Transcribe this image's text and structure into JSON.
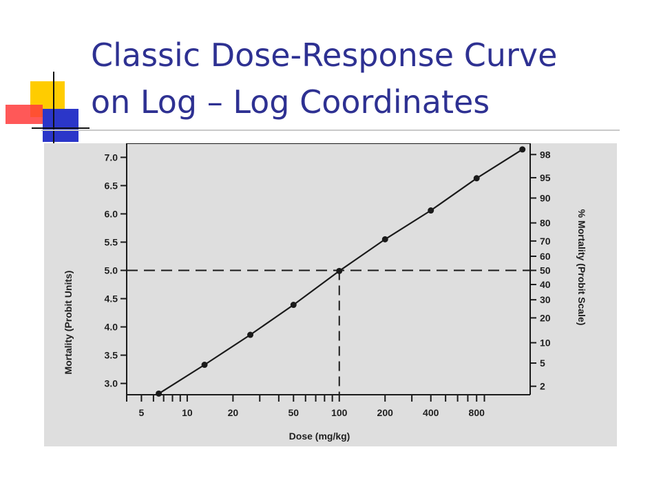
{
  "slide": {
    "title_lines": [
      "Classic Dose-Response Curve",
      "on Log – Log Coordinates"
    ],
    "colors": {
      "title": "#2e3192",
      "accent_yellow": "#ffcc00",
      "accent_blue": "#2b36c9",
      "accent_red": "#ff2a2a"
    }
  },
  "chart_data": {
    "type": "line",
    "xlabel": "Dose (mg/kg)",
    "ylabel": "Mortality (Probit Units)",
    "y2label": "% Mortality (Probit Scale)",
    "xscale": "log",
    "xlim": [
      4,
      1800
    ],
    "ylim": [
      2.8,
      7.2
    ],
    "x_tick_labels": [
      5,
      10,
      20,
      50,
      100,
      200,
      400,
      800
    ],
    "x_minor_ticks": [
      4,
      5,
      6,
      7,
      8,
      9,
      10,
      20,
      30,
      40,
      50,
      60,
      70,
      80,
      90,
      100,
      200,
      300,
      400,
      500,
      600,
      700,
      800,
      900
    ],
    "y_ticks": [
      "3.0",
      "3.5",
      "4.0",
      "4.5",
      "5.0",
      "5.5",
      "6.0",
      "6.5",
      "7.0"
    ],
    "y2_ticks": [
      {
        "label": "2",
        "probit": 2.95
      },
      {
        "label": "5",
        "probit": 3.36
      },
      {
        "label": "10",
        "probit": 3.72
      },
      {
        "label": "20",
        "probit": 4.16
      },
      {
        "label": "30",
        "probit": 4.48
      },
      {
        "label": "40",
        "probit": 4.75
      },
      {
        "label": "50",
        "probit": 5.0
      },
      {
        "label": "60",
        "probit": 5.25
      },
      {
        "label": "70",
        "probit": 5.52
      },
      {
        "label": "80",
        "probit": 5.84
      },
      {
        "label": "90",
        "probit": 6.28
      },
      {
        "label": "95",
        "probit": 6.64
      },
      {
        "label": "98",
        "probit": 7.05
      }
    ],
    "series": [
      {
        "points": [
          {
            "x": 6.5,
            "y": 2.82
          },
          {
            "x": 13,
            "y": 3.33
          },
          {
            "x": 26,
            "y": 3.86
          },
          {
            "x": 50,
            "y": 4.39
          },
          {
            "x": 100,
            "y": 4.99
          },
          {
            "x": 200,
            "y": 5.55
          },
          {
            "x": 400,
            "y": 6.06
          },
          {
            "x": 800,
            "y": 6.63
          },
          {
            "x": 1600,
            "y": 7.14
          }
        ]
      }
    ],
    "reference_lines": [
      {
        "axis": "y",
        "value": 5.0,
        "style": "dashed"
      },
      {
        "axis": "x",
        "value": 100,
        "style": "dashed"
      }
    ]
  }
}
